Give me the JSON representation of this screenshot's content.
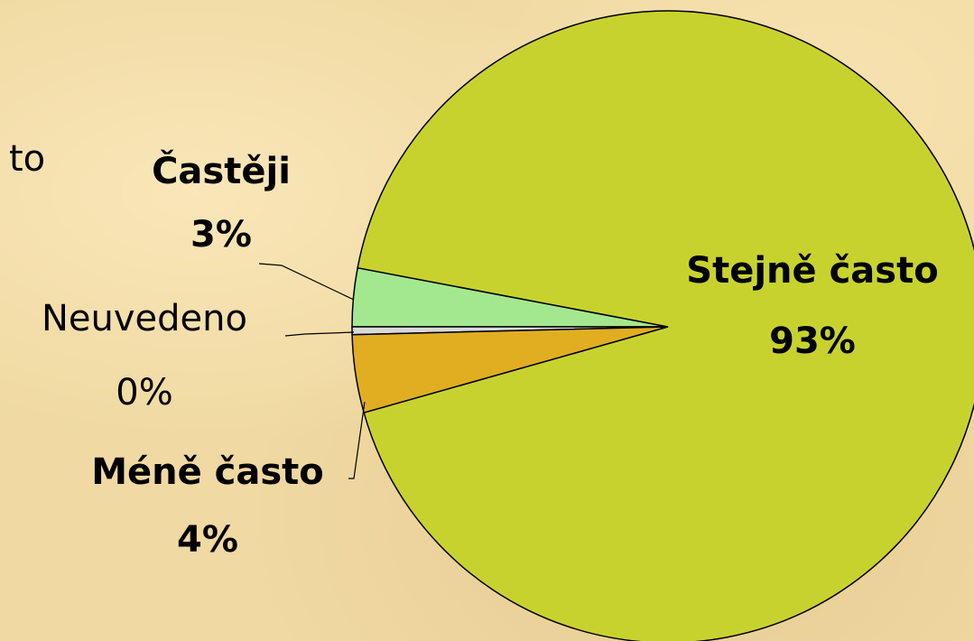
{
  "chart_data": {
    "type": "pie",
    "annotation": "to",
    "categories": [
      "Častěji",
      "Neuvedeno",
      "Méně často",
      "Stejně často"
    ],
    "values": [
      3,
      0.4,
      4,
      93
    ],
    "value_labels": [
      "3%",
      "0%",
      "4%",
      "93%"
    ],
    "colors": [
      "#a3e88e",
      "#d9d9d9",
      "#e1ae22",
      "#c8d22f"
    ]
  }
}
